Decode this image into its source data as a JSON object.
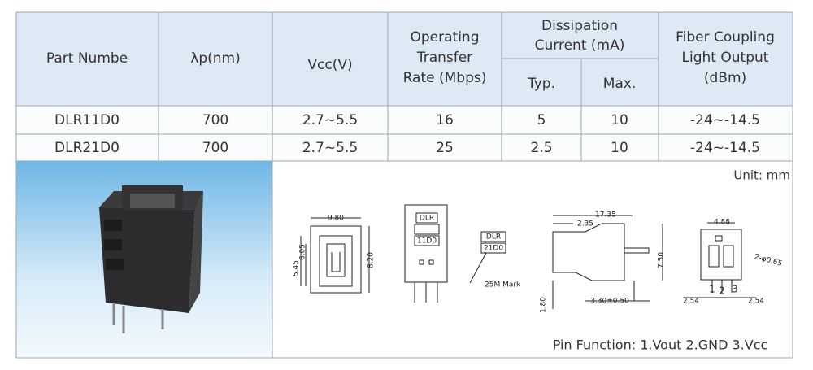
{
  "header": {
    "part": "Part Numbe",
    "lambda": "λp(nm)",
    "vcc": "Vcc(V)",
    "rate": [
      "Operating",
      "Transfer",
      "Rate (Mbps)"
    ],
    "dissipation": [
      "Dissipation",
      "Current (mA)"
    ],
    "typ": "Typ.",
    "max": "Max.",
    "fiber": [
      "Fiber Coupling",
      "Light Output",
      "(dBm)"
    ]
  },
  "table": {
    "rows": [
      [
        "DLR11D0",
        "700",
        "2.7~5.5",
        "16",
        "5",
        "10",
        "-24~-14.5"
      ],
      [
        "DLR21D0",
        "700",
        "2.7~5.5",
        "25",
        "2.5",
        "10",
        "-24~-14.5"
      ]
    ]
  },
  "unit": "Unit:  mm",
  "pin_function": "Pin Function: 1.Vout   2.GND   3.Vcc",
  "drawing": {
    "front": [
      "9.80",
      "6.05",
      "5.45",
      "8.20"
    ],
    "marks": [
      "DLR",
      "11D0",
      "DLR",
      "21D0",
      "25M Mark"
    ],
    "side": [
      "17.35",
      "2.35",
      "7.50",
      "1.80",
      "3.30±0.50"
    ],
    "bottom": [
      "4.88",
      "2-φ0.65",
      "2.54",
      "2.54",
      "1",
      "2",
      "3"
    ]
  }
}
